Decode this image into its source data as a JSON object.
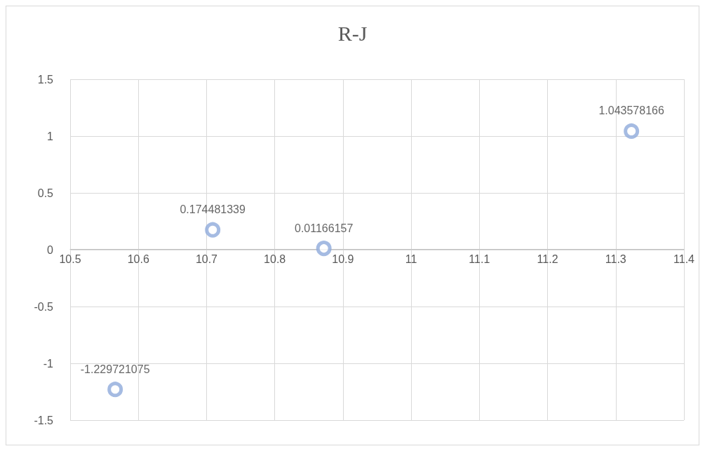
{
  "chart_data": {
    "type": "scatter",
    "title": "R-J",
    "x": [
      10.566,
      10.709,
      10.872,
      11.323
    ],
    "series": [
      {
        "color": "#8eaadb",
        "values": [
          -1.229721075,
          0.174481339,
          0.01166157,
          1.043578166
        ]
      }
    ],
    "xlim": [
      10.5,
      11.4
    ],
    "xticks": [
      10.5,
      10.6,
      10.7,
      10.8,
      10.9,
      11,
      11.1,
      11.2,
      11.3,
      11.4
    ],
    "ylim": [
      -1.5,
      1.5
    ],
    "yticks": [
      -1.5,
      -1,
      -0.5,
      0,
      0.5,
      1,
      1.5
    ],
    "grid": true,
    "marker": "circle",
    "data_labels": true
  }
}
